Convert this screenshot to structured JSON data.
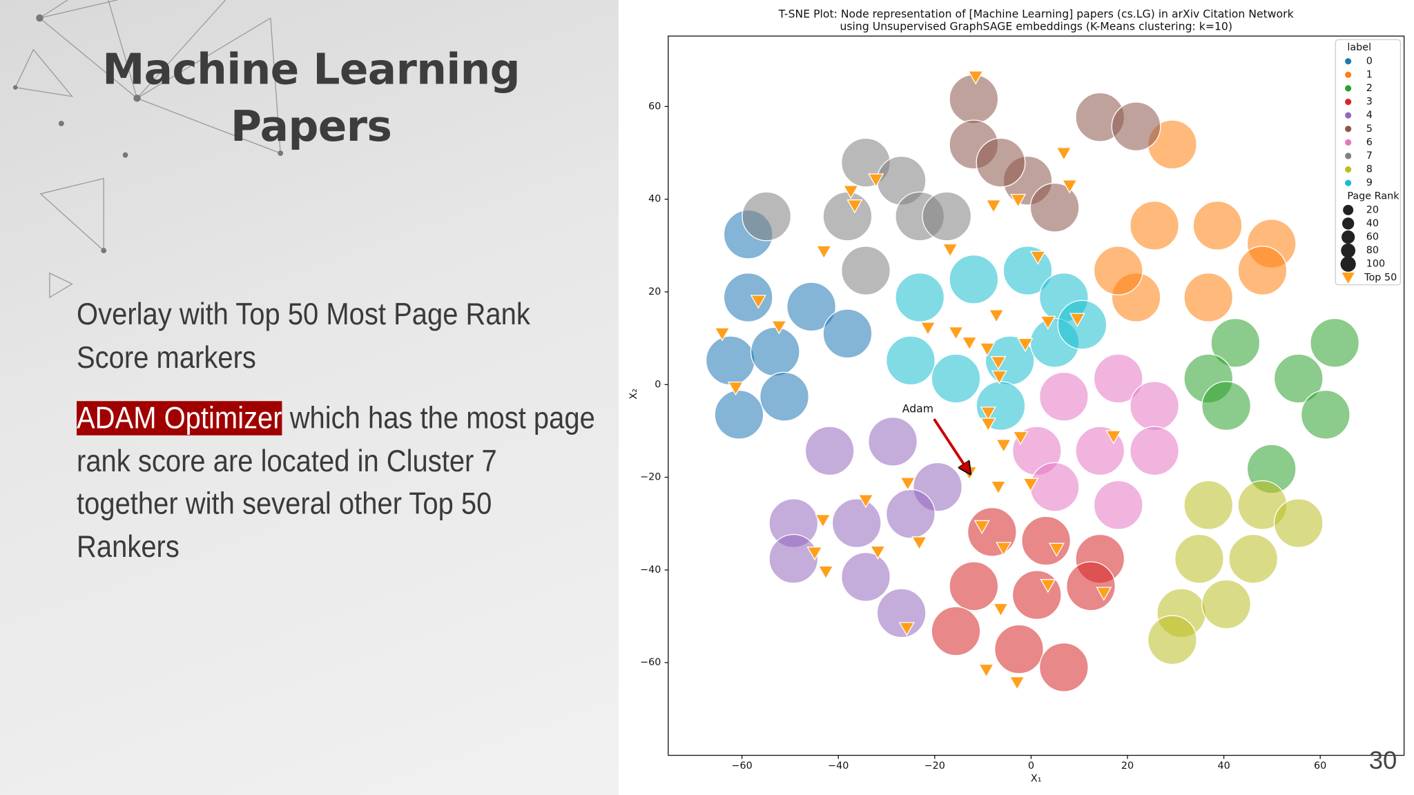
{
  "slide": {
    "title_lines": [
      "Machine Learning",
      "Papers"
    ],
    "bullet_1": "Overlay with Top 50 Most Page Rank Score markers",
    "bullet_2_highlight": "ADAM Optimizer",
    "bullet_2_rest": " which has the most page rank score are located in Cluster 7 together with several other Top 50 Rankers",
    "page_number": "30"
  },
  "chart_data": {
    "type": "scatter",
    "title": "T-SNE Plot: Node representation of [Machine Learning] papers (cs.LG) in arXiv Citation Network",
    "subtitle": "using Unsupervised GraphSAGE embeddings (K-Means clustering: k=10)",
    "x_label": "X₁",
    "y_label": "X₂",
    "xlim": [
      -75.3,
      77.4
    ],
    "ylim": [
      -80.0,
      75.2
    ],
    "xticks": [
      {
        "value": -60,
        "label": "−60"
      },
      {
        "value": -40,
        "label": "−40"
      },
      {
        "value": -20,
        "label": "−20"
      },
      0,
      20,
      40,
      60
    ],
    "yticks": [
      {
        "value": -60,
        "label": "−60"
      },
      {
        "value": -40,
        "label": "−40"
      },
      {
        "value": -20,
        "label": "−20"
      },
      0,
      20,
      40,
      60
    ],
    "legend_title": "label",
    "legend_position": "upper right",
    "size_legend": {
      "title": "Page Rank",
      "values": [
        20,
        40,
        60,
        80,
        100
      ]
    },
    "series": [
      {
        "name": "0",
        "color": "#1f77b4",
        "x": [
          -58.7,
          -62.4,
          -53.1,
          -45.6,
          -38.1,
          -60.6,
          -51.2,
          -58.7
        ],
        "y": [
          18.8,
          5.2,
          7.1,
          16.8,
          11.0,
          -6.5,
          -2.6,
          32.4
        ]
      },
      {
        "name": "1",
        "color": "#ff7f0e",
        "x": [
          29.3,
          25.6,
          38.7,
          49.9,
          21.8,
          36.8,
          48.0,
          18.1
        ],
        "y": [
          51.8,
          34.3,
          34.3,
          30.4,
          18.8,
          18.8,
          24.6,
          24.6
        ]
      },
      {
        "name": "2",
        "color": "#2ca02c",
        "x": [
          42.4,
          36.8,
          40.5,
          55.5,
          61.1,
          49.9,
          63.0
        ],
        "y": [
          9.0,
          1.3,
          -4.6,
          1.3,
          -6.5,
          -18.2,
          9.0
        ]
      },
      {
        "name": "3",
        "color": "#d62728",
        "x": [
          -8.1,
          3.1,
          14.3,
          -11.9,
          1.2,
          12.4,
          -15.6,
          -2.5,
          6.8
        ],
        "y": [
          -31.8,
          -33.7,
          -37.6,
          -43.5,
          -45.4,
          -43.5,
          -53.2,
          -57.1,
          -61.0
        ]
      },
      {
        "name": "4",
        "color": "#9467bd",
        "x": [
          -41.8,
          -28.7,
          -19.4,
          -49.3,
          -36.2,
          -25.0,
          -49.3,
          -34.3,
          -26.9
        ],
        "y": [
          -14.3,
          -12.3,
          -22.1,
          -29.9,
          -29.9,
          -27.9,
          -37.6,
          -41.5,
          -49.3
        ]
      },
      {
        "name": "5",
        "color": "#8c564b",
        "x": [
          -11.9,
          -11.9,
          -0.7,
          4.9,
          14.3,
          21.8,
          -6.3
        ],
        "y": [
          61.6,
          51.8,
          44.0,
          38.2,
          57.7,
          55.7,
          47.9
        ]
      },
      {
        "name": "6",
        "color": "#e377c2",
        "x": [
          6.8,
          18.1,
          25.6,
          1.2,
          14.3,
          25.6,
          4.9,
          18.1
        ],
        "y": [
          -2.6,
          1.3,
          -4.6,
          -14.3,
          -14.3,
          -14.3,
          -22.1,
          -26.0
        ]
      },
      {
        "name": "7",
        "color": "#7f7f7f",
        "x": [
          -34.3,
          -26.9,
          -38.1,
          -23.1,
          -54.9,
          -34.3,
          -17.5
        ],
        "y": [
          47.9,
          44.0,
          36.3,
          36.3,
          36.3,
          24.6,
          36.3
        ]
      },
      {
        "name": "8",
        "color": "#bcbd22",
        "x": [
          36.8,
          48.0,
          55.5,
          34.9,
          46.1,
          31.2,
          40.5,
          29.3
        ],
        "y": [
          -26.0,
          -26.0,
          -29.9,
          -37.6,
          -37.6,
          -49.3,
          -47.4,
          -55.1
        ]
      },
      {
        "name": "9",
        "color": "#17becf",
        "x": [
          -23.1,
          -11.9,
          -0.7,
          6.8,
          -25.0,
          -15.6,
          -4.4,
          4.9,
          -6.3,
          10.6
        ],
        "y": [
          18.8,
          22.7,
          24.6,
          18.8,
          5.2,
          1.3,
          5.2,
          9.0,
          -4.6,
          12.9
        ]
      },
      {
        "name": "Top 50",
        "color": "#ff9f1c",
        "marker": "triangle",
        "x": [
          -11.5,
          6.8,
          8.0,
          -37.4,
          -32.2,
          -36.6,
          -7.8,
          -2.7,
          -43.0,
          -16.8,
          1.4,
          -56.6,
          -52.3,
          -64.1,
          -61.3,
          -21.4,
          -15.6,
          -12.8,
          -9.1,
          -7.2,
          3.5,
          9.6,
          -1.2,
          -6.8,
          -6.6,
          -8.9,
          -8.9,
          -5.7,
          -2.2,
          17.1,
          -12.8,
          -6.8,
          -0.1,
          -25.6,
          -34.3,
          -10.2,
          -43.2,
          -44.9,
          -31.8,
          -23.2,
          -42.6,
          -5.7,
          5.3,
          3.5,
          15.1,
          -6.3,
          -25.8,
          -9.3,
          -2.9
        ],
        "y": [
          66.4,
          49.9,
          42.9,
          41.7,
          44.2,
          38.6,
          38.6,
          39.8,
          28.7,
          29.1,
          27.5,
          18.0,
          12.5,
          11.0,
          -0.7,
          12.2,
          11.2,
          9.0,
          7.7,
          14.9,
          13.5,
          14.1,
          8.7,
          4.8,
          1.7,
          -6.1,
          -8.5,
          -13.1,
          -11.4,
          -11.2,
          -19.0,
          -22.1,
          -21.5,
          -21.3,
          -25.0,
          -30.6,
          -29.3,
          -36.3,
          -36.1,
          -34.1,
          -40.4,
          -35.3,
          -35.5,
          -43.3,
          -45.0,
          -48.5,
          -52.6,
          -61.6,
          -64.3
        ]
      }
    ],
    "annotations": [
      {
        "text": "Adam",
        "x": -23.5,
        "y": -5.3,
        "xy": [
          -12.8,
          -19.0
        ],
        "color": "#cc0000"
      }
    ]
  }
}
